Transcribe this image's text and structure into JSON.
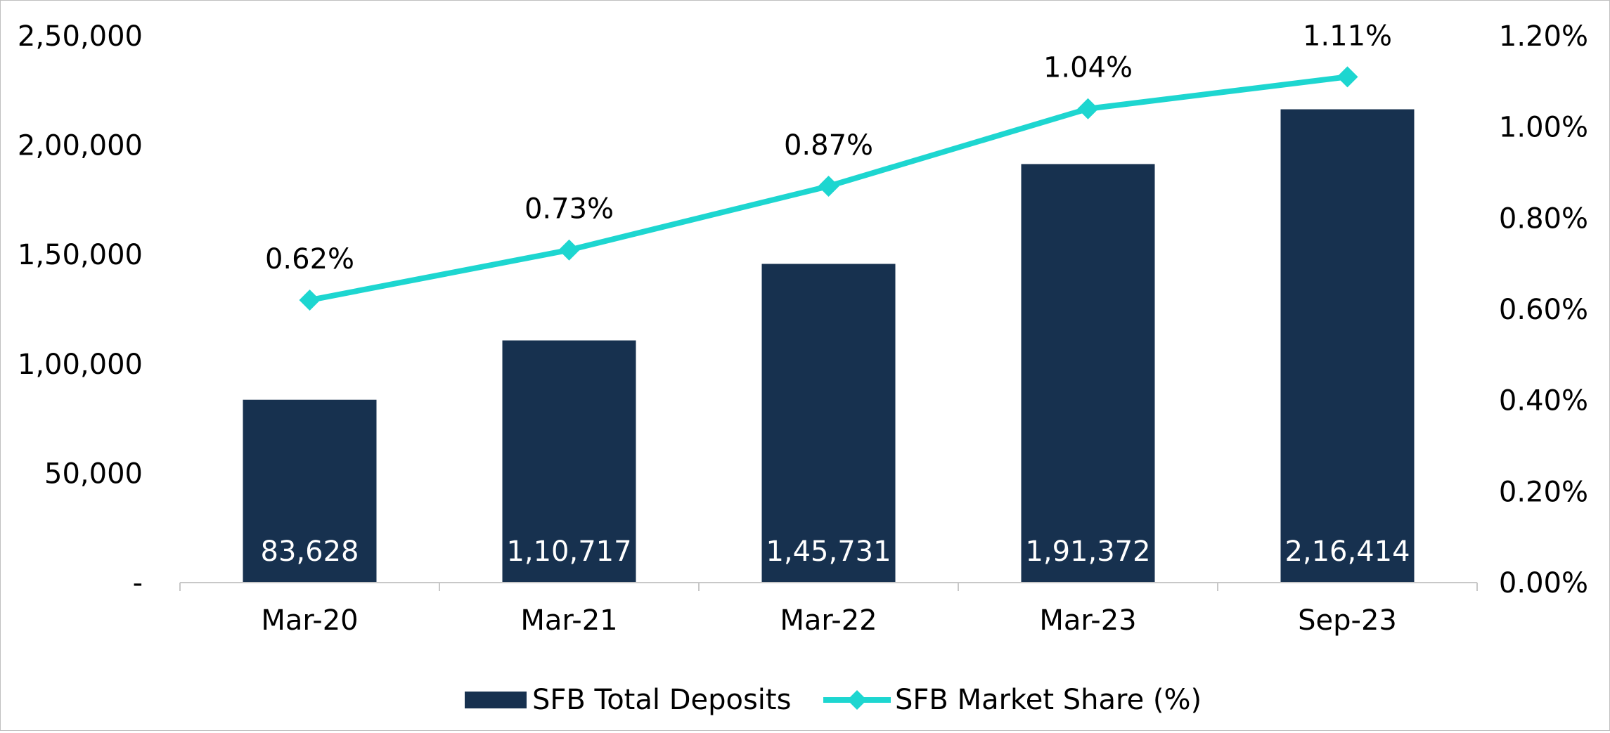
{
  "chart_data": {
    "type": "bar",
    "categories": [
      "Mar-20",
      "Mar-21",
      "Mar-22",
      "Mar-23",
      "Sep-23"
    ],
    "series": [
      {
        "name": "SFB Total Deposits",
        "type": "bar",
        "axis": "left",
        "values": [
          83628,
          110717,
          145731,
          191372,
          216414
        ],
        "value_labels": [
          "83,628",
          "1,10,717",
          "1,45,731",
          "1,91,372",
          "2,16,414"
        ],
        "color": "#17314F"
      },
      {
        "name": "SFB Market Share (%)",
        "type": "line",
        "axis": "right",
        "marker": "diamond",
        "values": [
          0.62,
          0.73,
          0.87,
          1.04,
          1.11
        ],
        "value_labels": [
          "0.62%",
          "0.73%",
          "0.87%",
          "1.04%",
          "1.11%"
        ],
        "color": "#1DD6D0"
      }
    ],
    "left_axis": {
      "ylim": [
        0,
        250000
      ],
      "ticks": [
        0,
        50000,
        100000,
        150000,
        200000,
        250000
      ],
      "tick_labels": [
        "-",
        "50,000",
        "1,00,000",
        "1,50,000",
        "2,00,000",
        "2,50,000"
      ]
    },
    "right_axis": {
      "ylim": [
        0,
        1.2
      ],
      "ticks": [
        0,
        0.2,
        0.4,
        0.6,
        0.8,
        1.0,
        1.2
      ],
      "tick_labels": [
        "0.00%",
        "0.20%",
        "0.40%",
        "0.60%",
        "0.80%",
        "1.00%",
        "1.20%"
      ]
    },
    "grid": false,
    "legend_position": "bottom"
  }
}
